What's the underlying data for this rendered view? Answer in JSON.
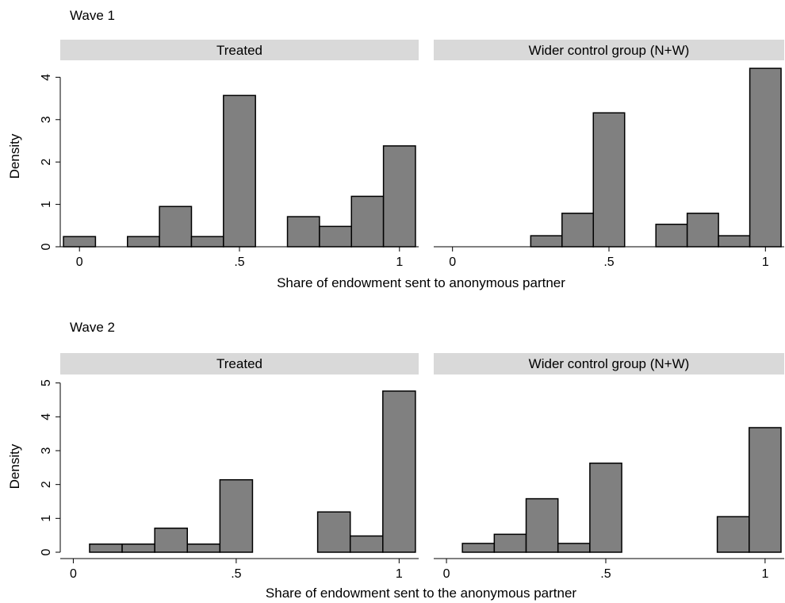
{
  "chart_data": [
    {
      "type": "bar",
      "title": "Wave 1",
      "xlabel": "Share of endowment sent to anonymous partner",
      "ylabel": "Density",
      "ylim": [
        0,
        4.4
      ],
      "yticks": [
        0,
        1,
        2,
        3,
        4
      ],
      "xlim": [
        -0.06,
        1.06
      ],
      "xticks": [
        {
          "v": 0,
          "label": "0"
        },
        {
          "v": 0.5,
          "label": ".5"
        },
        {
          "v": 1,
          "label": "1"
        }
      ],
      "bar_width": 0.1,
      "grid": false,
      "bar_color": "#808080",
      "panels": [
        {
          "label": "Treated",
          "x": [
            0.0,
            0.2,
            0.3,
            0.4,
            0.5,
            0.7,
            0.8,
            0.9,
            1.0
          ],
          "values": [
            0.24,
            0.24,
            0.95,
            0.24,
            3.57,
            0.71,
            0.48,
            1.19,
            2.38
          ]
        },
        {
          "label": "Wider control group (N+W)",
          "x": [
            0.3,
            0.4,
            0.5,
            0.7,
            0.8,
            0.9,
            1.0
          ],
          "values": [
            0.26,
            0.79,
            3.16,
            0.53,
            0.79,
            0.26,
            4.21
          ]
        }
      ]
    },
    {
      "type": "bar",
      "title": "Wave 2",
      "xlabel": "Share of endowment sent to the anonymous partner",
      "ylabel": "Density",
      "ylim": [
        0,
        5.25
      ],
      "yticks": [
        0,
        1,
        2,
        3,
        4,
        5
      ],
      "xlim": [
        -0.04,
        1.06
      ],
      "xticks": [
        {
          "v": 0,
          "label": "0"
        },
        {
          "v": 0.5,
          "label": ".5"
        },
        {
          "v": 1,
          "label": "1"
        }
      ],
      "bar_width": 0.1,
      "grid": false,
      "bar_color": "#808080",
      "panels": [
        {
          "label": "Treated",
          "x": [
            0.1,
            0.2,
            0.3,
            0.4,
            0.5,
            0.8,
            0.9,
            1.0
          ],
          "values": [
            0.24,
            0.24,
            0.71,
            0.24,
            2.14,
            1.19,
            0.48,
            4.76
          ]
        },
        {
          "label": "Wider control group (N+W)",
          "x": [
            0.1,
            0.2,
            0.3,
            0.4,
            0.5,
            0.9,
            1.0
          ],
          "values": [
            0.26,
            0.53,
            1.58,
            0.26,
            2.63,
            1.05,
            3.68
          ]
        }
      ]
    }
  ]
}
